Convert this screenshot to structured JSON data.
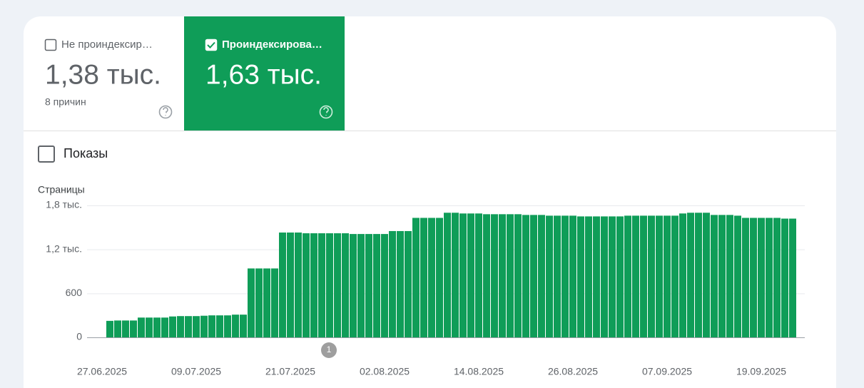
{
  "tabs": [
    {
      "label": "Не проиндексир…",
      "value": "1,38 тыс.",
      "note": "8 причин",
      "checked": false
    },
    {
      "label": "Проиндексирова…",
      "value": "1,63 тыс.",
      "checked": true
    }
  ],
  "impressions_label": "Показы",
  "chart_data": {
    "type": "bar",
    "y_axis_label": "Страницы",
    "annotation": "1",
    "color": "#0f9d58",
    "grid": true,
    "ylim": [
      0,
      1800
    ],
    "yticks": [
      0,
      600,
      {
        "value": 1200,
        "label": "1,2 тыс."
      },
      {
        "value": 1800,
        "label": "1,8 тыс."
      }
    ],
    "categories": [
      "27.06.2025",
      null,
      null,
      null,
      null,
      null,
      null,
      null,
      null,
      null,
      null,
      null,
      "09.07.2025",
      null,
      null,
      null,
      null,
      null,
      null,
      null,
      null,
      null,
      null,
      null,
      "21.07.2025",
      null,
      null,
      null,
      null,
      null,
      null,
      null,
      null,
      null,
      null,
      null,
      "02.08.2025",
      null,
      null,
      null,
      null,
      null,
      null,
      null,
      null,
      null,
      null,
      null,
      "14.08.2025",
      null,
      null,
      null,
      null,
      null,
      null,
      null,
      null,
      null,
      null,
      null,
      "26.08.2025",
      null,
      null,
      null,
      null,
      null,
      null,
      null,
      null,
      null,
      null,
      null,
      "07.09.2025",
      null,
      null,
      null,
      null,
      null,
      null,
      null,
      null,
      null,
      null,
      null,
      "19.09.2025",
      null,
      null,
      null
    ],
    "values": [
      225,
      230,
      230,
      230,
      270,
      270,
      270,
      270,
      285,
      290,
      290,
      290,
      295,
      300,
      300,
      300,
      310,
      310,
      940,
      940,
      940,
      940,
      1430,
      1430,
      1430,
      1420,
      1420,
      1420,
      1420,
      1420,
      1420,
      1410,
      1410,
      1410,
      1410,
      1410,
      1450,
      1450,
      1450,
      1630,
      1630,
      1630,
      1630,
      1700,
      1700,
      1690,
      1690,
      1690,
      1680,
      1680,
      1680,
      1680,
      1680,
      1670,
      1670,
      1670,
      1660,
      1660,
      1660,
      1660,
      1650,
      1650,
      1650,
      1650,
      1650,
      1650,
      1660,
      1660,
      1660,
      1660,
      1660,
      1660,
      1660,
      1690,
      1700,
      1700,
      1700,
      1670,
      1670,
      1670,
      1660,
      1630,
      1630,
      1630,
      1630,
      1630,
      1620,
      1620
    ]
  }
}
